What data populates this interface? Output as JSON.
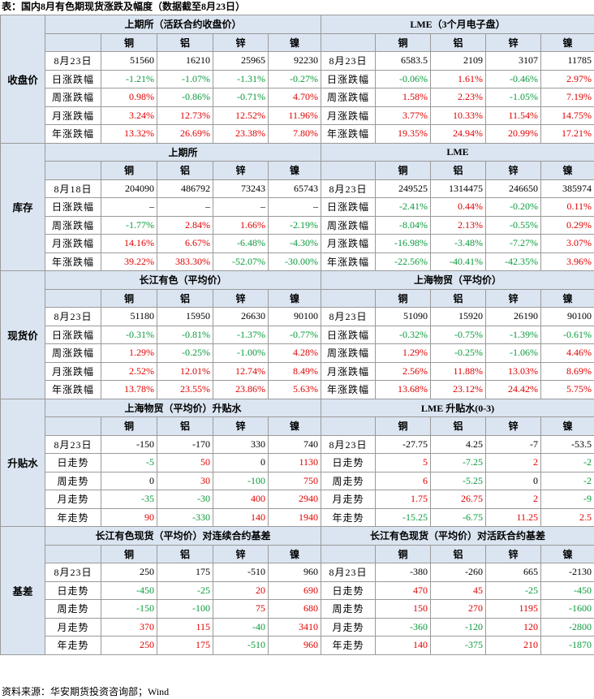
{
  "title": "表：国内8月有色期现货涨跌及幅度（数据截至8月23日）",
  "source": "资料来源：华安期货投资咨询部；Wind",
  "colors": {
    "rise": "#e00000",
    "fall": "#0a9a3c"
  },
  "sections": [
    {
      "label": "收盘价",
      "groups": [
        {
          "title": "上期所（活跃合约收盘价）",
          "columns": [
            "铜",
            "铝",
            "锌",
            "镍"
          ],
          "rows": [
            {
              "label": "8月23日",
              "cells": [
                "51560",
                "16210",
                "25965",
                "92230"
              ]
            },
            {
              "label": "日涨跌幅",
              "cells": [
                "-1.21%",
                "-1.07%",
                "-1.31%",
                "-0.27%"
              ]
            },
            {
              "label": "周涨跌幅",
              "cells": [
                "0.98%",
                "-0.86%",
                "-0.71%",
                "4.70%"
              ]
            },
            {
              "label": "月涨跌幅",
              "cells": [
                "3.24%",
                "12.73%",
                "12.52%",
                "11.96%"
              ]
            },
            {
              "label": "年涨跌幅",
              "cells": [
                "13.32%",
                "26.69%",
                "23.38%",
                "7.80%"
              ]
            }
          ]
        },
        {
          "title": "LME（3个月电子盘）",
          "columns": [
            "铜",
            "铝",
            "锌",
            "镍"
          ],
          "rows": [
            {
              "label": "8月23日",
              "cells": [
                "6583.5",
                "2109",
                "3107",
                "11785"
              ]
            },
            {
              "label": "日涨跌幅",
              "cells": [
                "-0.06%",
                "1.61%",
                "-0.46%",
                "2.97%"
              ]
            },
            {
              "label": "周涨跌幅",
              "cells": [
                "1.58%",
                "2.23%",
                "-1.05%",
                "7.19%"
              ]
            },
            {
              "label": "月涨跌幅",
              "cells": [
                "3.77%",
                "10.33%",
                "11.54%",
                "14.75%"
              ]
            },
            {
              "label": "年涨跌幅",
              "cells": [
                "19.35%",
                "24.94%",
                "20.99%",
                "17.21%"
              ]
            }
          ]
        }
      ]
    },
    {
      "label": "库存",
      "groups": [
        {
          "title": "上期所",
          "columns": [
            "铜",
            "铝",
            "锌",
            "镍"
          ],
          "rows": [
            {
              "label": "8月18日",
              "cells": [
                "204090",
                "486792",
                "73243",
                "65743"
              ]
            },
            {
              "label": "日涨跌幅",
              "cells": [
                "–",
                "–",
                "–",
                "–"
              ]
            },
            {
              "label": "周涨跌幅",
              "cells": [
                "-1.77%",
                "2.84%",
                "1.66%",
                "-2.19%"
              ]
            },
            {
              "label": "月涨跌幅",
              "cells": [
                "14.16%",
                "6.67%",
                "-6.48%",
                "-4.30%"
              ]
            },
            {
              "label": "年涨跌幅",
              "cells": [
                "39.22%",
                "383.30%",
                "-52.07%",
                "-30.00%"
              ]
            }
          ]
        },
        {
          "title": "LME",
          "columns": [
            "铜",
            "铝",
            "锌",
            "镍"
          ],
          "rows": [
            {
              "label": "8月23日",
              "cells": [
                "249525",
                "1314475",
                "246650",
                "385974"
              ]
            },
            {
              "label": "日涨跌幅",
              "cells": [
                "-2.41%",
                "0.44%",
                "-0.20%",
                "0.11%"
              ]
            },
            {
              "label": "周涨跌幅",
              "cells": [
                "-8.04%",
                "2.13%",
                "-0.55%",
                "0.29%"
              ]
            },
            {
              "label": "月涨跌幅",
              "cells": [
                "-16.98%",
                "-3.48%",
                "-7.27%",
                "3.07%"
              ]
            },
            {
              "label": "年涨跌幅",
              "cells": [
                "-22.56%",
                "-40.41%",
                "-42.35%",
                "3.96%"
              ]
            }
          ]
        }
      ]
    },
    {
      "label": "现货价",
      "groups": [
        {
          "title": "长江有色（平均价）",
          "columns": [
            "铜",
            "铝",
            "锌",
            "镍"
          ],
          "rows": [
            {
              "label": "8月23日",
              "cells": [
                "51180",
                "15950",
                "26630",
                "90100"
              ]
            },
            {
              "label": "日涨跌幅",
              "cells": [
                "-0.31%",
                "-0.81%",
                "-1.37%",
                "-0.77%"
              ]
            },
            {
              "label": "周涨跌幅",
              "cells": [
                "1.29%",
                "-0.25%",
                "-1.00%",
                "4.28%"
              ]
            },
            {
              "label": "月涨跌幅",
              "cells": [
                "2.52%",
                "12.01%",
                "12.74%",
                "8.49%"
              ]
            },
            {
              "label": "年涨跌幅",
              "cells": [
                "13.78%",
                "23.55%",
                "23.86%",
                "5.63%"
              ]
            }
          ]
        },
        {
          "title": "上海物贸（平均价）",
          "columns": [
            "铜",
            "铝",
            "锌",
            "镍"
          ],
          "rows": [
            {
              "label": "8月23日",
              "cells": [
                "51090",
                "15920",
                "26190",
                "90100"
              ]
            },
            {
              "label": "日涨跌幅",
              "cells": [
                "-0.32%",
                "-0.75%",
                "-1.39%",
                "-0.61%"
              ]
            },
            {
              "label": "周涨跌幅",
              "cells": [
                "1.29%",
                "-0.25%",
                "-1.06%",
                "4.46%"
              ]
            },
            {
              "label": "月涨跌幅",
              "cells": [
                "2.56%",
                "11.88%",
                "13.03%",
                "8.69%"
              ]
            },
            {
              "label": "年涨跌幅",
              "cells": [
                "13.68%",
                "23.12%",
                "24.42%",
                "5.75%"
              ]
            }
          ]
        }
      ]
    },
    {
      "label": "升贴水",
      "groups": [
        {
          "title": "上海物贸（平均价）升贴水",
          "columns": [
            "铜",
            "铝",
            "锌",
            "镍"
          ],
          "rows": [
            {
              "label": "8月23日",
              "cells": [
                "-150",
                "-170",
                "330",
                "740"
              ]
            },
            {
              "label": "日走势",
              "cells": [
                "-5",
                "50",
                "0",
                "1130"
              ]
            },
            {
              "label": "周走势",
              "cells": [
                "0",
                "30",
                "-100",
                "750"
              ]
            },
            {
              "label": "月走势",
              "cells": [
                "-35",
                "-30",
                "400",
                "2940"
              ]
            },
            {
              "label": "年走势",
              "cells": [
                "90",
                "-330",
                "140",
                "1940"
              ]
            }
          ]
        },
        {
          "title": "LME 升贴水(0-3)",
          "columns": [
            "铜",
            "铝",
            "锌",
            "镍"
          ],
          "rows": [
            {
              "label": "8月23日",
              "cells": [
                "-27.75",
                "4.25",
                "-7",
                "-53.5"
              ]
            },
            {
              "label": "日走势",
              "cells": [
                "5",
                "-7.25",
                "2",
                "-2"
              ]
            },
            {
              "label": "周走势",
              "cells": [
                "6",
                "-5.25",
                "0",
                "-2"
              ]
            },
            {
              "label": "月走势",
              "cells": [
                "1.75",
                "26.75",
                "2",
                "-9"
              ]
            },
            {
              "label": "年走势",
              "cells": [
                "-15.25",
                "-6.75",
                "11.25",
                "2.5"
              ]
            }
          ]
        }
      ]
    },
    {
      "label": "基差",
      "groups": [
        {
          "title": "长江有色现货（平均价）对连续合约基差",
          "columns": [
            "铜",
            "铝",
            "锌",
            "镍"
          ],
          "rows": [
            {
              "label": "8月23日",
              "cells": [
                "250",
                "175",
                "-510",
                "960"
              ]
            },
            {
              "label": "日走势",
              "cells": [
                "-450",
                "-25",
                "20",
                "690"
              ]
            },
            {
              "label": "周走势",
              "cells": [
                "-150",
                "-100",
                "75",
                "680"
              ]
            },
            {
              "label": "月走势",
              "cells": [
                "370",
                "115",
                "-40",
                "3410"
              ]
            },
            {
              "label": "年走势",
              "cells": [
                "250",
                "175",
                "-510",
                "960"
              ]
            }
          ]
        },
        {
          "title": "长江有色现货（平均价）对活跃合约基差",
          "columns": [
            "铜",
            "铝",
            "锌",
            "镍"
          ],
          "rows": [
            {
              "label": "8月23日",
              "cells": [
                "-380",
                "-260",
                "665",
                "-2130"
              ]
            },
            {
              "label": "日走势",
              "cells": [
                "470",
                "45",
                "-25",
                "-450"
              ]
            },
            {
              "label": "周走势",
              "cells": [
                "150",
                "270",
                "1195",
                "-1600"
              ]
            },
            {
              "label": "月走势",
              "cells": [
                "-360",
                "-120",
                "120",
                "-2800"
              ]
            },
            {
              "label": "年走势",
              "cells": [
                "140",
                "-375",
                "210",
                "-1870"
              ]
            }
          ]
        }
      ]
    }
  ]
}
